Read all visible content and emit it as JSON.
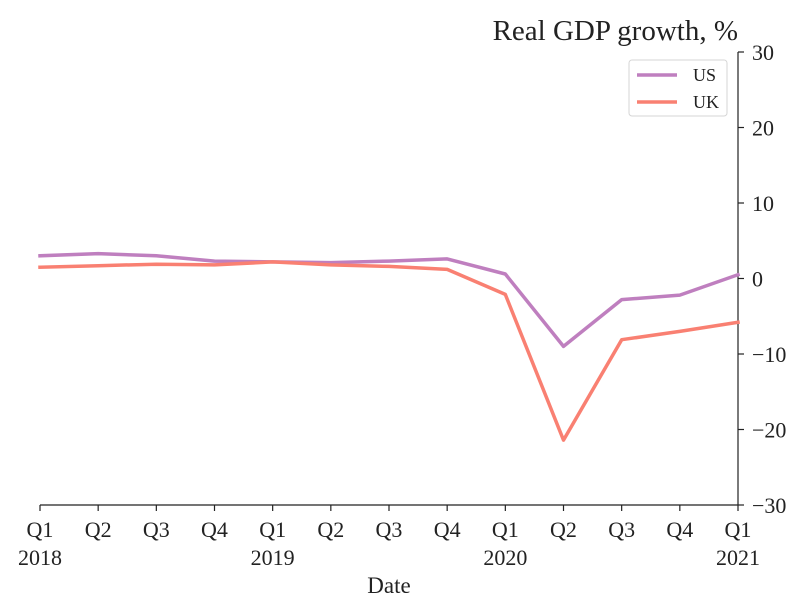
{
  "chart_data": {
    "type": "line",
    "title": "Real GDP growth, %",
    "xlabel": "Date",
    "ylabel": "",
    "ylim": [
      -30,
      30
    ],
    "yticks": [
      30,
      20,
      10,
      0,
      -10,
      -20,
      -30
    ],
    "x": [
      "Q1 2018",
      "Q2 2018",
      "Q3 2018",
      "Q4 2018",
      "Q1 2019",
      "Q2 2019",
      "Q3 2019",
      "Q4 2019",
      "Q1 2020",
      "Q2 2020",
      "Q3 2020",
      "Q4 2020",
      "Q1 2021"
    ],
    "xtick_quarters": [
      "Q1",
      "Q2",
      "Q3",
      "Q4",
      "Q1",
      "Q2",
      "Q3",
      "Q4",
      "Q1",
      "Q2",
      "Q3",
      "Q4",
      "Q1"
    ],
    "xtick_years": [
      {
        "index": 0,
        "label": "2018"
      },
      {
        "index": 4,
        "label": "2019"
      },
      {
        "index": 8,
        "label": "2020"
      },
      {
        "index": 12,
        "label": "2021"
      }
    ],
    "series": [
      {
        "name": "US",
        "color": "#bf7fbf",
        "values": [
          3.0,
          3.3,
          3.0,
          2.3,
          2.2,
          2.1,
          2.3,
          2.6,
          0.6,
          -9.0,
          -2.8,
          -2.2,
          0.5
        ]
      },
      {
        "name": "UK",
        "color": "#f98072",
        "values": [
          1.5,
          1.7,
          1.9,
          1.8,
          2.2,
          1.8,
          1.6,
          1.2,
          -2.1,
          -21.4,
          -8.1,
          -7.0,
          -5.8
        ]
      }
    ],
    "legend_position": "top-right",
    "y_axis_side": "right",
    "grid": false
  }
}
